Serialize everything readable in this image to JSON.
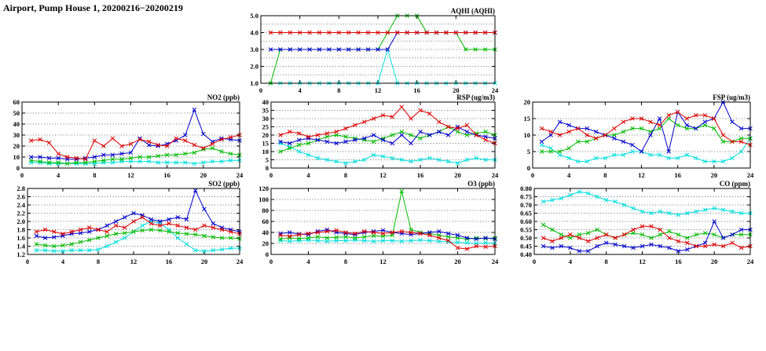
{
  "title": "Airport, Pump House 1, 20200216−20200219",
  "colors": {
    "red": "#dd0000",
    "blue": "#0000cc",
    "green": "#00bb00",
    "cyan": "#00dddd"
  },
  "chart_data": {
    "type": "line",
    "x_range": [
      0,
      24
    ],
    "x_ticks": [
      0,
      4,
      8,
      12,
      16,
      20,
      24
    ],
    "x_hours": [
      1,
      2,
      3,
      4,
      5,
      6,
      7,
      8,
      9,
      10,
      11,
      12,
      13,
      14,
      15,
      16,
      17,
      18,
      19,
      20,
      21,
      22,
      23,
      24
    ],
    "grid": "horizontal-dotted",
    "legend": "none",
    "marker": "x-cross",
    "charts": [
      {
        "id": "aqhi",
        "title": "AQHI (AQHI)",
        "ylim": [
          1.0,
          5.0
        ],
        "yticks": [
          1.0,
          2.0,
          3.0,
          4.0,
          5.0
        ],
        "ygrid": [
          1.5,
          2.0,
          2.5,
          3.0,
          3.5,
          4.0,
          4.5
        ],
        "tick_decimals": 1,
        "series": [
          {
            "name": "red",
            "color": "red",
            "values": [
              4,
              4,
              4,
              4,
              4,
              4,
              4,
              4,
              4,
              4,
              4,
              4,
              4,
              4,
              4,
              4,
              4,
              4,
              4,
              4,
              4,
              4,
              4,
              4
            ]
          },
          {
            "name": "blue",
            "color": "blue",
            "values": [
              3,
              3,
              3,
              3,
              3,
              3,
              3,
              3,
              3,
              3,
              3,
              3,
              3,
              4,
              4,
              4,
              4,
              4,
              4,
              4,
              4,
              4,
              4,
              4
            ]
          },
          {
            "name": "green",
            "color": "green",
            "values": [
              1,
              3,
              3,
              3,
              3,
              3,
              3,
              3,
              3,
              3,
              3,
              3,
              4,
              5,
              5,
              5,
              4,
              4,
              4,
              4,
              3,
              3,
              3,
              3
            ]
          },
          {
            "name": "cyan",
            "color": "cyan",
            "values": [
              1,
              1,
              1,
              1,
              1,
              1,
              1,
              1,
              1,
              1,
              1,
              1,
              3,
              1,
              1,
              1,
              1,
              1,
              1,
              1,
              1,
              1,
              1,
              1
            ]
          }
        ]
      },
      {
        "id": "no2",
        "title": "NO2 (ppb)",
        "ylim": [
          0,
          60
        ],
        "yticks": [
          0,
          10,
          20,
          30,
          40,
          50,
          60
        ],
        "tick_decimals": 0,
        "series": [
          {
            "name": "red",
            "color": "red",
            "values": [
              25,
              26,
              23,
              13,
              10,
              9,
              8,
              25,
              20,
              27,
              20,
              22,
              26,
              24,
              21,
              20,
              27,
              25,
              21,
              18,
              22,
              26,
              28,
              30
            ]
          },
          {
            "name": "blue",
            "color": "blue",
            "values": [
              10,
              10,
              9,
              9,
              8,
              8,
              9,
              10,
              12,
              12,
              13,
              14,
              27,
              21,
              20,
              22,
              25,
              30,
              53,
              31,
              24,
              27,
              26,
              25
            ]
          },
          {
            "name": "green",
            "color": "green",
            "values": [
              7,
              6,
              5,
              5,
              4,
              5,
              5,
              6,
              7,
              8,
              8,
              9,
              10,
              10,
              11,
              12,
              12,
              13,
              14,
              17,
              18,
              15,
              13,
              12
            ]
          },
          {
            "name": "cyan",
            "color": "cyan",
            "values": [
              5,
              5,
              4,
              4,
              4,
              4,
              4,
              4,
              5,
              5,
              6,
              6,
              6,
              6,
              5,
              5,
              5,
              5,
              4,
              5,
              6,
              6,
              7,
              7
            ]
          }
        ]
      },
      {
        "id": "rsp",
        "title": "RSP (ug/m3)",
        "ylim": [
          0,
          40
        ],
        "yticks": [
          0,
          5,
          10,
          15,
          20,
          25,
          30,
          35,
          40
        ],
        "tick_decimals": 0,
        "series": [
          {
            "name": "red",
            "color": "red",
            "values": [
              20,
              22,
              21,
              19,
              20,
              21,
              22,
              24,
              26,
              28,
              30,
              32,
              31,
              37,
              30,
              35,
              33,
              28,
              25,
              24,
              26,
              20,
              17,
              15
            ]
          },
          {
            "name": "blue",
            "color": "blue",
            "values": [
              16,
              15,
              17,
              18,
              17,
              16,
              15,
              16,
              17,
              18,
              20,
              17,
              15,
              20,
              15,
              22,
              20,
              22,
              20,
              25,
              22,
              20,
              19,
              18
            ]
          },
          {
            "name": "green",
            "color": "green",
            "values": [
              10,
              12,
              14,
              15,
              17,
              19,
              20,
              19,
              18,
              17,
              16,
              18,
              20,
              22,
              20,
              18,
              20,
              22,
              25,
              22,
              20,
              21,
              22,
              20
            ]
          },
          {
            "name": "cyan",
            "color": "cyan",
            "values": [
              15,
              13,
              10,
              8,
              6,
              5,
              4,
              3,
              4,
              5,
              8,
              7,
              6,
              5,
              4,
              5,
              6,
              5,
              4,
              3,
              5,
              6,
              5,
              5
            ]
          }
        ]
      },
      {
        "id": "fsp",
        "title": "FSP (ug/m3)",
        "ylim": [
          0,
          20
        ],
        "yticks": [
          0,
          5,
          10,
          15,
          20
        ],
        "tick_decimals": 0,
        "series": [
          {
            "name": "red",
            "color": "red",
            "values": [
              12,
              11,
              10,
              11,
              12,
              10,
              9,
              10,
              12,
              14,
              15,
              15,
              14,
              13,
              16,
              17,
              15,
              16,
              16,
              15,
              10,
              8,
              8,
              7
            ]
          },
          {
            "name": "blue",
            "color": "blue",
            "values": [
              8,
              10,
              14,
              13,
              12,
              12,
              11,
              10,
              9,
              8,
              7,
              5,
              10,
              15,
              5,
              17,
              13,
              12,
              14,
              15,
              20,
              14,
              12,
              12
            ]
          },
          {
            "name": "green",
            "color": "green",
            "values": [
              5,
              5,
              5,
              6,
              8,
              8,
              9,
              10,
              10,
              11,
              12,
              12,
              11,
              12,
              15,
              13,
              12,
              12,
              13,
              12,
              8,
              8,
              9,
              9
            ]
          },
          {
            "name": "cyan",
            "color": "cyan",
            "values": [
              7,
              6,
              4,
              3,
              2,
              2,
              3,
              3,
              4,
              4,
              5,
              5,
              4,
              4,
              3,
              3,
              4,
              3,
              2,
              2,
              2,
              3,
              5,
              9
            ]
          }
        ]
      },
      {
        "id": "so2",
        "title": "SO2 (ppb)",
        "ylim": [
          1.2,
          2.8
        ],
        "yticks": [
          1.2,
          1.4,
          1.6,
          1.8,
          2.0,
          2.2,
          2.4,
          2.6,
          2.8
        ],
        "tick_decimals": 1,
        "series": [
          {
            "name": "red",
            "color": "red",
            "values": [
              1.75,
              1.8,
              1.75,
              1.7,
              1.75,
              1.8,
              1.85,
              1.8,
              1.75,
              1.9,
              1.85,
              2.0,
              2.1,
              1.95,
              1.9,
              1.95,
              1.9,
              1.85,
              1.8,
              1.9,
              1.85,
              1.8,
              1.75,
              1.7
            ]
          },
          {
            "name": "blue",
            "color": "blue",
            "values": [
              1.65,
              1.6,
              1.62,
              1.65,
              1.7,
              1.72,
              1.75,
              1.8,
              1.9,
              2.0,
              2.1,
              2.2,
              2.15,
              2.05,
              2.0,
              2.05,
              2.1,
              2.05,
              2.75,
              2.3,
              1.95,
              1.85,
              1.8,
              1.75
            ]
          },
          {
            "name": "green",
            "color": "green",
            "values": [
              1.45,
              1.42,
              1.4,
              1.42,
              1.45,
              1.5,
              1.55,
              1.6,
              1.65,
              1.7,
              1.72,
              1.75,
              1.78,
              1.8,
              1.78,
              1.75,
              1.72,
              1.7,
              1.68,
              1.65,
              1.62,
              1.6,
              1.6,
              1.58
            ]
          },
          {
            "name": "cyan",
            "color": "cyan",
            "values": [
              1.3,
              1.3,
              1.28,
              1.28,
              1.3,
              1.3,
              1.3,
              1.32,
              1.4,
              1.5,
              1.6,
              1.75,
              1.9,
              2.0,
              1.95,
              1.8,
              1.6,
              1.45,
              1.3,
              1.28,
              1.3,
              1.32,
              1.35,
              1.35
            ]
          }
        ]
      },
      {
        "id": "o3",
        "title": "O3 (ppb)",
        "ylim": [
          0,
          120
        ],
        "yticks": [
          0,
          20,
          40,
          60,
          80,
          100,
          120
        ],
        "tick_decimals": 0,
        "series": [
          {
            "name": "red",
            "color": "red",
            "values": [
              35,
              33,
              36,
              38,
              40,
              42,
              44,
              40,
              38,
              42,
              40,
              38,
              40,
              42,
              40,
              38,
              35,
              30,
              25,
              12,
              10,
              15,
              14,
              15
            ]
          },
          {
            "name": "blue",
            "color": "blue",
            "values": [
              38,
              40,
              37,
              36,
              42,
              45,
              40,
              38,
              36,
              40,
              42,
              44,
              40,
              38,
              36,
              38,
              40,
              42,
              38,
              35,
              30,
              28,
              30,
              28
            ]
          },
          {
            "name": "green",
            "color": "green",
            "values": [
              28,
              30,
              29,
              30,
              32,
              30,
              31,
              32,
              30,
              32,
              34,
              33,
              35,
              115,
              45,
              40,
              38,
              35,
              32,
              30,
              28,
              30,
              29,
              30
            ]
          },
          {
            "name": "cyan",
            "color": "cyan",
            "values": [
              25,
              24,
              25,
              26,
              25,
              24,
              25,
              25,
              26,
              25,
              24,
              25,
              25,
              24,
              25,
              26,
              25,
              24,
              23,
              22,
              21,
              20,
              21,
              20
            ]
          }
        ]
      },
      {
        "id": "co",
        "title": "CO (ppm)",
        "ylim": [
          0.4,
          0.8
        ],
        "yticks": [
          0.4,
          0.45,
          0.5,
          0.55,
          0.6,
          0.65,
          0.7,
          0.75,
          0.8
        ],
        "tick_decimals": 2,
        "series": [
          {
            "name": "red",
            "color": "red",
            "values": [
              0.5,
              0.48,
              0.5,
              0.52,
              0.5,
              0.48,
              0.5,
              0.52,
              0.5,
              0.52,
              0.55,
              0.57,
              0.57,
              0.55,
              0.5,
              0.48,
              0.47,
              0.45,
              0.45,
              0.46,
              0.45,
              0.47,
              0.44,
              0.45
            ]
          },
          {
            "name": "blue",
            "color": "blue",
            "values": [
              0.45,
              0.44,
              0.45,
              0.44,
              0.42,
              0.42,
              0.45,
              0.47,
              0.46,
              0.45,
              0.44,
              0.45,
              0.46,
              0.45,
              0.44,
              0.42,
              0.43,
              0.45,
              0.47,
              0.6,
              0.5,
              0.52,
              0.55,
              0.55
            ]
          },
          {
            "name": "green",
            "color": "green",
            "values": [
              0.58,
              0.55,
              0.52,
              0.5,
              0.52,
              0.53,
              0.55,
              0.52,
              0.5,
              0.52,
              0.53,
              0.52,
              0.5,
              0.52,
              0.54,
              0.52,
              0.5,
              0.52,
              0.53,
              0.52,
              0.5,
              0.52,
              0.52,
              0.52
            ]
          },
          {
            "name": "cyan",
            "color": "cyan",
            "values": [
              0.72,
              0.73,
              0.74,
              0.76,
              0.78,
              0.77,
              0.75,
              0.73,
              0.72,
              0.7,
              0.68,
              0.66,
              0.65,
              0.66,
              0.65,
              0.64,
              0.65,
              0.66,
              0.67,
              0.68,
              0.67,
              0.66,
              0.65,
              0.65
            ]
          }
        ]
      }
    ]
  }
}
